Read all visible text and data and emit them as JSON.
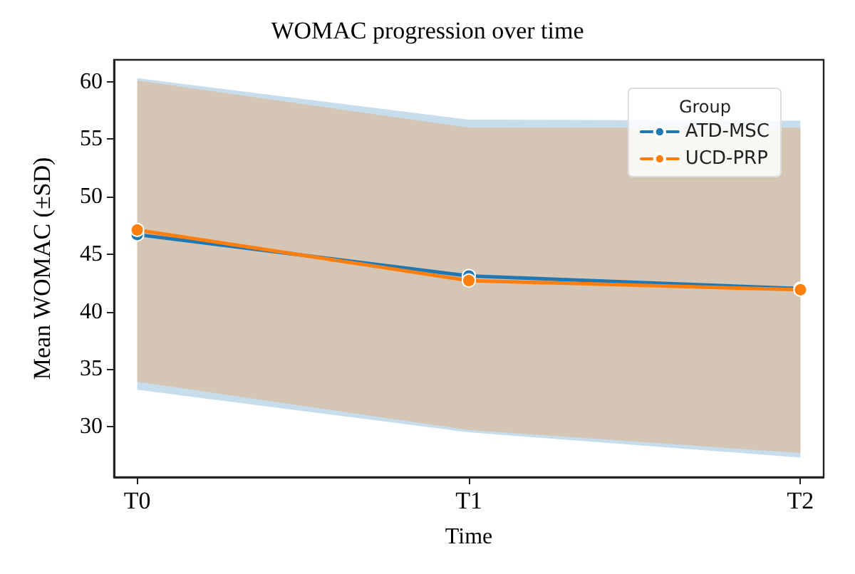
{
  "chart_data": {
    "type": "line",
    "title": "WOMAC progression over time",
    "xlabel": "Time",
    "ylabel": "Mean WOMAC (±SD)",
    "legend_title": "Group",
    "categories": [
      "T0",
      "T1",
      "T2"
    ],
    "series": [
      {
        "name": "ATD-MSC",
        "color": "#1f77b4",
        "values": [
          46.7,
          43.1,
          42.0
        ],
        "lower": [
          33.2,
          29.5,
          27.3
        ],
        "upper": [
          60.3,
          56.7,
          56.6
        ]
      },
      {
        "name": "UCD-PRP",
        "color": "#ff7f0e",
        "values": [
          47.1,
          42.7,
          41.9
        ],
        "lower": [
          33.9,
          29.7,
          27.7
        ],
        "upper": [
          60.1,
          56.0,
          56.0
        ]
      }
    ],
    "ylim": [
      25.6,
      61.9
    ],
    "yticks": [
      30,
      35,
      40,
      45,
      50,
      55,
      60
    ],
    "grid": false,
    "legend": "top right",
    "marker": "circle",
    "line_style": "solid"
  }
}
